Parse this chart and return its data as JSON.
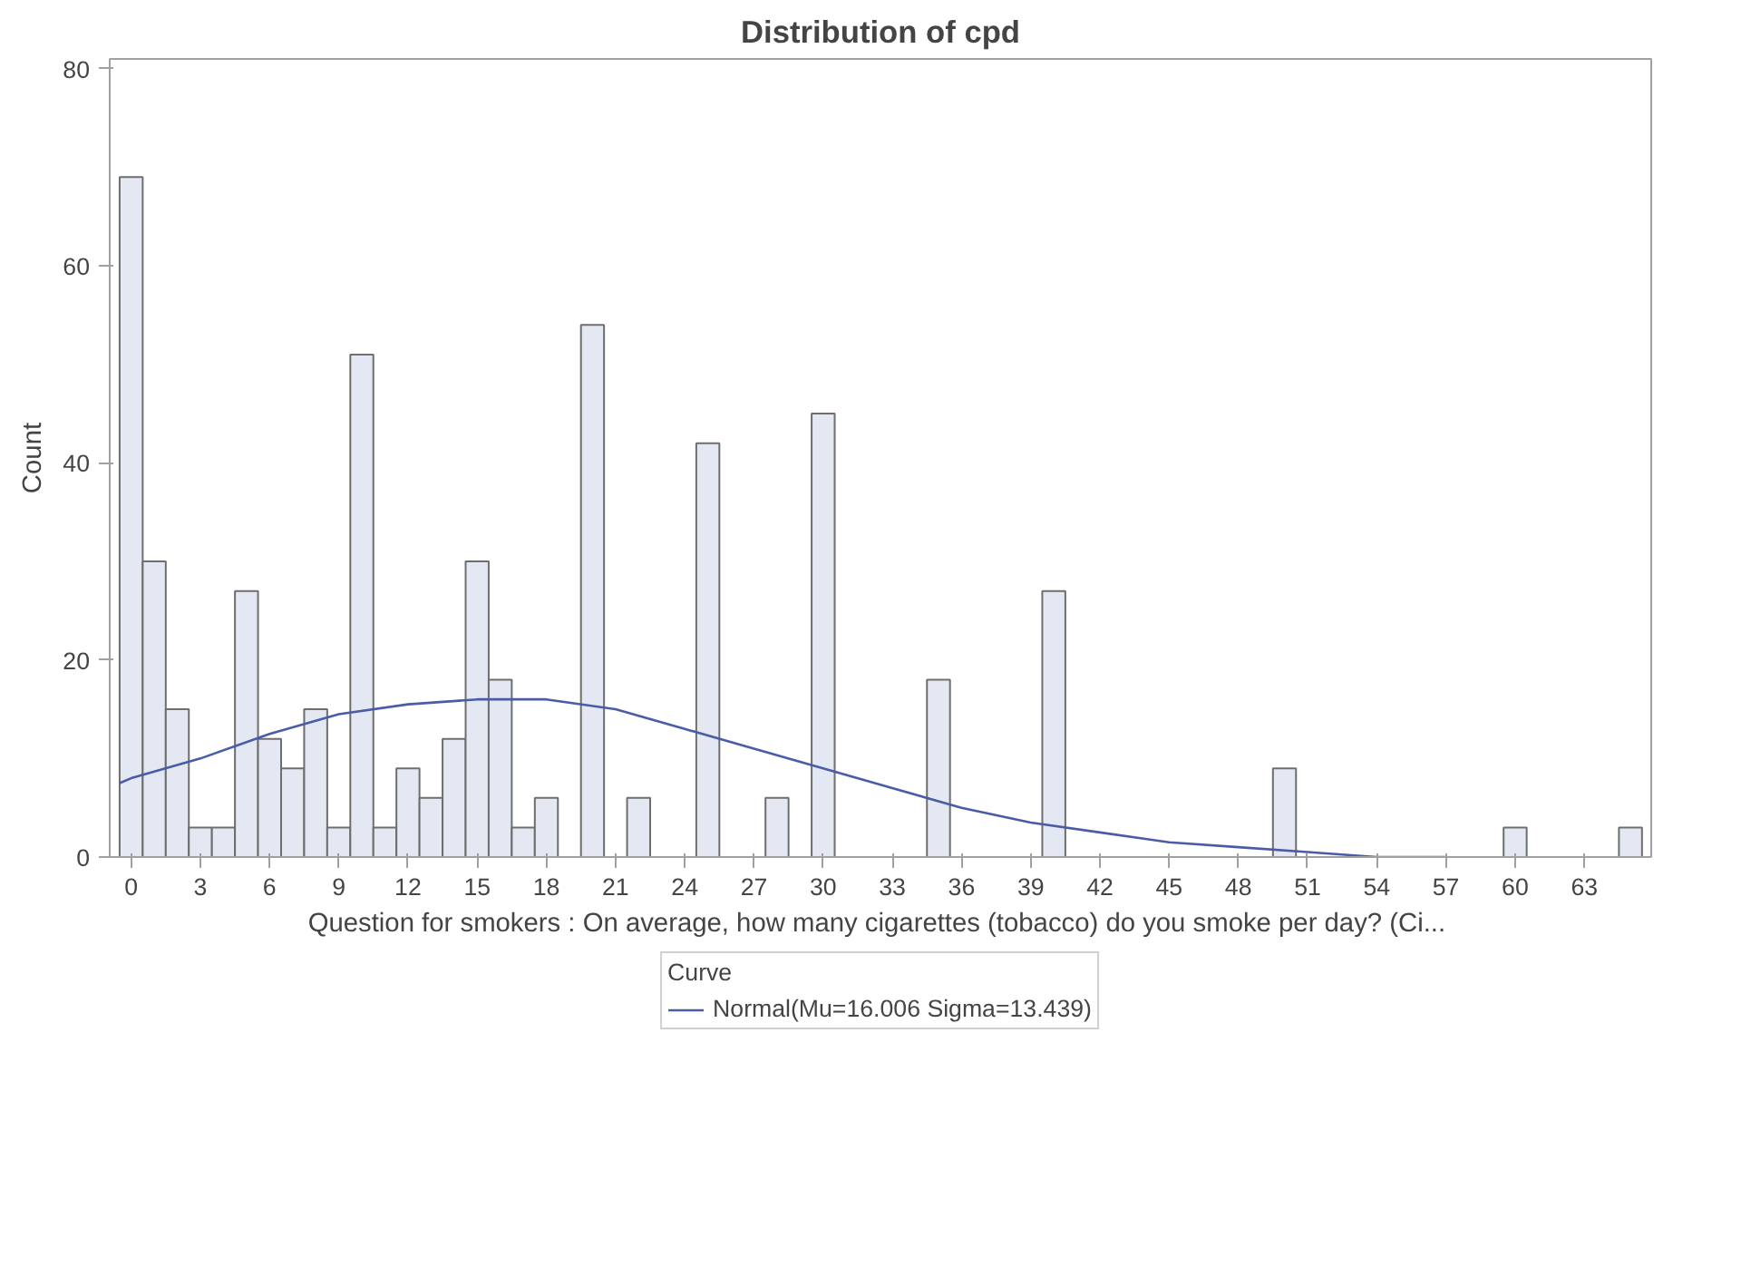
{
  "chart_data": {
    "type": "histogram",
    "title": "Distribution of cpd",
    "xlabel": "Question for smokers :  On average, how many cigarettes (tobacco) do you smoke per day? (Ci...",
    "ylabel": "Count",
    "legend_title": "Curve",
    "legend": "bottom",
    "grid": false,
    "bins": [
      -0.5,
      0.5,
      1.5,
      2.5,
      3.5,
      4.5,
      5.5,
      6.5,
      7.5,
      8.5,
      9.5,
      10.5,
      11.5,
      12.5,
      13.5,
      14.5,
      15.5,
      16.5,
      17.5,
      18.5,
      19.5,
      20.5,
      21.5,
      22.5,
      23.5,
      24.5,
      25.5,
      26.5,
      27.5,
      28.5,
      29.5,
      30.5,
      31.5,
      32.5,
      33.5,
      34.5,
      35.5,
      36.5,
      37.5,
      38.5,
      39.5,
      40.5,
      41.5,
      42.5,
      43.5,
      44.5,
      45.5,
      46.5,
      47.5,
      48.5,
      49.5,
      50.5,
      51.5,
      52.5,
      53.5,
      54.5,
      55.5,
      56.5,
      57.5,
      58.5,
      59.5,
      60.5,
      61.5,
      62.5,
      63.5,
      64.5,
      65.5
    ],
    "series": [
      {
        "color": "#e3e8f2",
        "values": [
          69,
          30,
          15,
          3,
          3,
          27,
          12,
          9,
          15,
          3,
          51,
          3,
          9,
          6,
          12,
          30,
          18,
          3,
          6,
          0,
          54,
          0,
          6,
          0,
          0,
          42,
          0,
          0,
          6,
          0,
          45,
          0,
          0,
          0,
          0,
          18,
          0,
          0,
          0,
          0,
          27,
          0,
          0,
          0,
          0,
          0,
          0,
          0,
          0,
          0,
          9,
          0,
          0,
          0,
          0,
          0,
          0,
          0,
          0,
          0,
          3,
          0,
          0,
          0,
          0,
          3
        ]
      },
      {
        "type": "line",
        "name": "Normal(Mu=16.006 Sigma=13.439)",
        "color": "#4a5ca8",
        "x": [
          -0.5,
          0,
          3,
          6,
          9,
          12,
          15,
          16,
          18,
          21,
          24,
          27,
          30,
          33,
          36,
          39,
          42,
          45,
          48,
          51,
          54,
          57
        ],
        "values": [
          7.5,
          8,
          10,
          12.5,
          14.5,
          15.5,
          16,
          16,
          16,
          15,
          13,
          11,
          9,
          7,
          5,
          3.5,
          2.5,
          1.5,
          1,
          0.5,
          0,
          0
        ]
      }
    ],
    "xlim": [
      -0.93,
      65.9
    ],
    "ylim": [
      0,
      81
    ],
    "xticks": [
      0,
      3,
      6,
      9,
      12,
      15,
      18,
      21,
      24,
      27,
      30,
      33,
      36,
      39,
      42,
      45,
      48,
      51,
      54,
      57,
      60,
      63
    ],
    "yticks": [
      0,
      20,
      40,
      60,
      80
    ]
  }
}
